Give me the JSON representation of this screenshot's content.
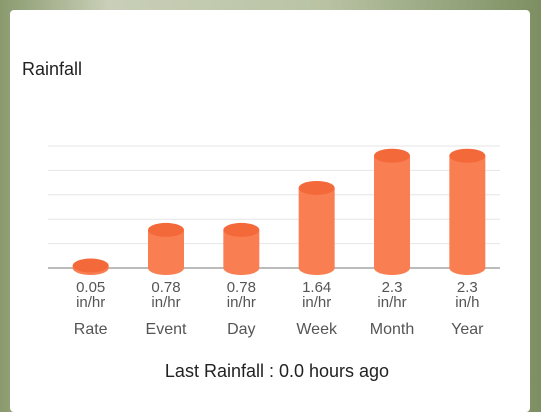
{
  "title": "Rainfall",
  "chart_data": {
    "type": "bar",
    "categories": [
      "Rate",
      "Event",
      "Day",
      "Week",
      "Month",
      "Year"
    ],
    "values": [
      0.05,
      0.78,
      0.78,
      1.64,
      2.3,
      2.3
    ],
    "units": [
      "in/hr",
      "in/hr",
      "in/hr",
      "in/hr",
      "in/hr",
      "in/h"
    ],
    "color": "#f97f52",
    "ylim": [
      0,
      2.5
    ],
    "yticks": [
      0,
      0.5,
      1,
      1.5,
      2,
      2.5
    ],
    "grid": true
  },
  "footer": "Last Rainfall : 0.0 hours ago"
}
